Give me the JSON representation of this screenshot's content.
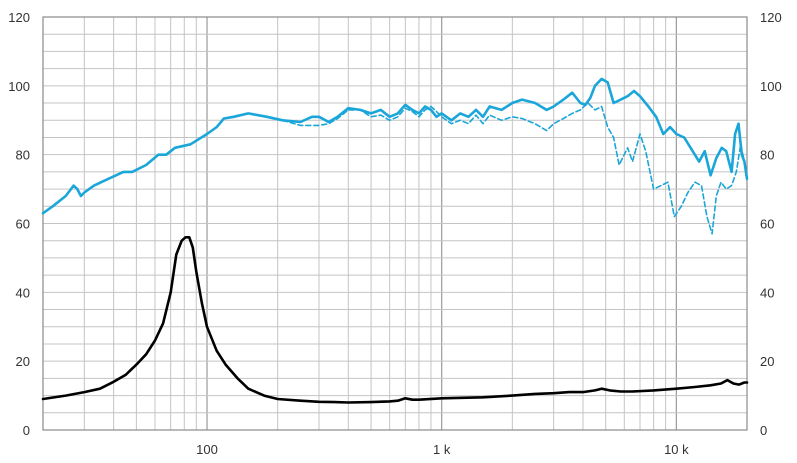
{
  "chart_data": {
    "type": "line",
    "title": "",
    "xlabel": "",
    "ylabel": "",
    "xscale": "log",
    "xlim": [
      20,
      20000
    ],
    "ylim": [
      0,
      120
    ],
    "grid": true,
    "legend": "none",
    "x_tick_labels": [
      {
        "value": 100,
        "label": "100"
      },
      {
        "value": 1000,
        "label": "1 k"
      },
      {
        "value": 10000,
        "label": "10 k"
      }
    ],
    "y_tick_labels": [
      {
        "value": 0,
        "label": "0"
      },
      {
        "value": 20,
        "label": "20"
      },
      {
        "value": 40,
        "label": "40"
      },
      {
        "value": 60,
        "label": "60"
      },
      {
        "value": 80,
        "label": "80"
      },
      {
        "value": 100,
        "label": "100"
      },
      {
        "value": 120,
        "label": "120"
      }
    ],
    "series": [
      {
        "color": "#1ba6d9",
        "style": "solid",
        "points": [
          [
            20,
            63
          ],
          [
            22,
            65
          ],
          [
            25,
            68
          ],
          [
            27,
            71
          ],
          [
            28,
            70
          ],
          [
            29,
            68
          ],
          [
            30,
            69
          ],
          [
            33,
            71
          ],
          [
            38,
            73
          ],
          [
            44,
            75
          ],
          [
            48,
            75
          ],
          [
            55,
            77
          ],
          [
            62,
            80
          ],
          [
            67,
            80
          ],
          [
            73,
            82
          ],
          [
            85,
            83
          ],
          [
            100,
            86
          ],
          [
            110,
            88
          ],
          [
            118,
            90.5
          ],
          [
            130,
            91
          ],
          [
            150,
            92
          ],
          [
            180,
            91
          ],
          [
            210,
            90
          ],
          [
            250,
            89.5
          ],
          [
            280,
            91
          ],
          [
            300,
            91
          ],
          [
            330,
            89.5
          ],
          [
            360,
            91
          ],
          [
            400,
            93.5
          ],
          [
            450,
            93
          ],
          [
            500,
            92
          ],
          [
            550,
            93
          ],
          [
            600,
            91
          ],
          [
            650,
            92
          ],
          [
            700,
            94.5
          ],
          [
            750,
            93
          ],
          [
            800,
            92
          ],
          [
            850,
            94
          ],
          [
            900,
            93
          ],
          [
            950,
            91
          ],
          [
            1000,
            92
          ],
          [
            1100,
            90
          ],
          [
            1200,
            92
          ],
          [
            1300,
            91
          ],
          [
            1400,
            93
          ],
          [
            1500,
            91
          ],
          [
            1600,
            94
          ],
          [
            1800,
            93
          ],
          [
            2000,
            95
          ],
          [
            2200,
            96
          ],
          [
            2500,
            95
          ],
          [
            2800,
            93
          ],
          [
            3000,
            94
          ],
          [
            3300,
            96
          ],
          [
            3600,
            98
          ],
          [
            3900,
            95
          ],
          [
            4100,
            94.5
          ],
          [
            4300,
            96.5
          ],
          [
            4500,
            100
          ],
          [
            4800,
            102
          ],
          [
            5100,
            101
          ],
          [
            5400,
            95
          ],
          [
            5800,
            96
          ],
          [
            6200,
            97
          ],
          [
            6600,
            98.5
          ],
          [
            7000,
            97
          ],
          [
            7600,
            94
          ],
          [
            8200,
            91
          ],
          [
            8800,
            86
          ],
          [
            9400,
            88
          ],
          [
            10000,
            86
          ],
          [
            10800,
            85
          ],
          [
            11500,
            82
          ],
          [
            12500,
            78
          ],
          [
            13200,
            81
          ],
          [
            14000,
            74
          ],
          [
            14800,
            79
          ],
          [
            15600,
            82
          ],
          [
            16300,
            81
          ],
          [
            17200,
            75
          ],
          [
            17800,
            86
          ],
          [
            18400,
            89
          ],
          [
            19000,
            80
          ],
          [
            19500,
            78
          ],
          [
            20000,
            73
          ]
        ]
      },
      {
        "color": "#1ba6d9",
        "style": "dashed",
        "points": [
          [
            180,
            91
          ],
          [
            210,
            90
          ],
          [
            250,
            88.5
          ],
          [
            300,
            88.5
          ],
          [
            330,
            89
          ],
          [
            360,
            90.5
          ],
          [
            400,
            93
          ],
          [
            450,
            93
          ],
          [
            500,
            91
          ],
          [
            550,
            91.5
          ],
          [
            600,
            90
          ],
          [
            650,
            91
          ],
          [
            700,
            93.5
          ],
          [
            750,
            92.5
          ],
          [
            800,
            91
          ],
          [
            850,
            93
          ],
          [
            900,
            94
          ],
          [
            950,
            92.5
          ],
          [
            1000,
            91
          ],
          [
            1100,
            89
          ],
          [
            1200,
            90
          ],
          [
            1300,
            89
          ],
          [
            1400,
            91.5
          ],
          [
            1500,
            89
          ],
          [
            1600,
            91.5
          ],
          [
            1800,
            90
          ],
          [
            2000,
            91
          ],
          [
            2200,
            90.5
          ],
          [
            2500,
            89
          ],
          [
            2800,
            87
          ],
          [
            3000,
            89
          ],
          [
            3300,
            90.5
          ],
          [
            3600,
            92
          ],
          [
            3900,
            93
          ],
          [
            4200,
            95
          ],
          [
            4500,
            93
          ],
          [
            4800,
            94
          ],
          [
            5100,
            88
          ],
          [
            5400,
            85
          ],
          [
            5700,
            77
          ],
          [
            6200,
            82
          ],
          [
            6500,
            78
          ],
          [
            7000,
            86
          ],
          [
            7400,
            81
          ],
          [
            8000,
            70
          ],
          [
            8600,
            71
          ],
          [
            9200,
            72
          ],
          [
            9800,
            62
          ],
          [
            10500,
            65
          ],
          [
            11200,
            69
          ],
          [
            12000,
            72
          ],
          [
            12800,
            71
          ],
          [
            13500,
            62
          ],
          [
            14200,
            57
          ],
          [
            14800,
            68
          ],
          [
            15500,
            72
          ],
          [
            16300,
            70
          ],
          [
            17200,
            71
          ],
          [
            18000,
            75
          ],
          [
            18800,
            83
          ],
          [
            19500,
            78
          ],
          [
            20000,
            73
          ]
        ]
      },
      {
        "color": "#000000",
        "style": "solid",
        "points": [
          [
            20,
            9
          ],
          [
            25,
            10
          ],
          [
            30,
            11
          ],
          [
            35,
            12
          ],
          [
            40,
            14
          ],
          [
            45,
            16
          ],
          [
            50,
            19
          ],
          [
            55,
            22
          ],
          [
            60,
            26
          ],
          [
            65,
            31
          ],
          [
            70,
            40
          ],
          [
            74,
            51
          ],
          [
            78,
            55
          ],
          [
            81,
            56
          ],
          [
            84,
            56
          ],
          [
            87,
            53
          ],
          [
            90,
            46
          ],
          [
            95,
            37
          ],
          [
            100,
            30
          ],
          [
            110,
            23
          ],
          [
            120,
            19
          ],
          [
            135,
            15
          ],
          [
            150,
            12
          ],
          [
            175,
            10
          ],
          [
            200,
            9
          ],
          [
            250,
            8.5
          ],
          [
            300,
            8.2
          ],
          [
            350,
            8.1
          ],
          [
            400,
            8
          ],
          [
            500,
            8.1
          ],
          [
            600,
            8.3
          ],
          [
            650,
            8.5
          ],
          [
            700,
            9.2
          ],
          [
            750,
            8.8
          ],
          [
            800,
            8.8
          ],
          [
            1000,
            9.2
          ],
          [
            1500,
            9.5
          ],
          [
            2000,
            10
          ],
          [
            2500,
            10.5
          ],
          [
            3000,
            10.7
          ],
          [
            3500,
            11
          ],
          [
            4000,
            11
          ],
          [
            4500,
            11.5
          ],
          [
            4800,
            12
          ],
          [
            5200,
            11.5
          ],
          [
            5800,
            11.2
          ],
          [
            6500,
            11.2
          ],
          [
            8000,
            11.5
          ],
          [
            10000,
            12
          ],
          [
            12000,
            12.5
          ],
          [
            14000,
            13
          ],
          [
            15500,
            13.5
          ],
          [
            16500,
            14.5
          ],
          [
            17500,
            13.5
          ],
          [
            18500,
            13.2
          ],
          [
            19500,
            13.8
          ],
          [
            20000,
            13.8
          ]
        ]
      }
    ]
  }
}
